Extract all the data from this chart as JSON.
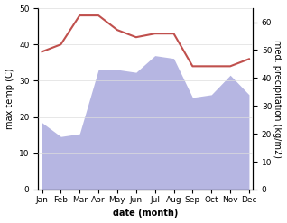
{
  "months": [
    "Jan",
    "Feb",
    "Mar",
    "Apr",
    "May",
    "Jun",
    "Jul",
    "Aug",
    "Sep",
    "Oct",
    "Nov",
    "Dec"
  ],
  "max_temp": [
    38,
    40,
    48,
    48,
    44,
    42,
    43,
    43,
    34,
    34,
    34,
    36
  ],
  "precipitation": [
    24,
    19,
    20,
    43,
    43,
    42,
    48,
    47,
    33,
    34,
    41,
    34
  ],
  "temp_color": "#c0504d",
  "precip_fill_color": "#aaaadd",
  "precip_fill_alpha": 0.85,
  "ylim_left": [
    0,
    50
  ],
  "ylim_right": [
    0,
    65
  ],
  "right_ticks": [
    0,
    10,
    20,
    30,
    40,
    50,
    60
  ],
  "left_ticks": [
    0,
    10,
    20,
    30,
    40,
    50
  ],
  "xlabel": "date (month)",
  "ylabel_left": "max temp (C)",
  "ylabel_right": "med. precipitation (kg/m2)",
  "bg_color": "#ffffff",
  "label_fontsize": 7,
  "tick_fontsize": 6.5,
  "linewidth": 1.5
}
